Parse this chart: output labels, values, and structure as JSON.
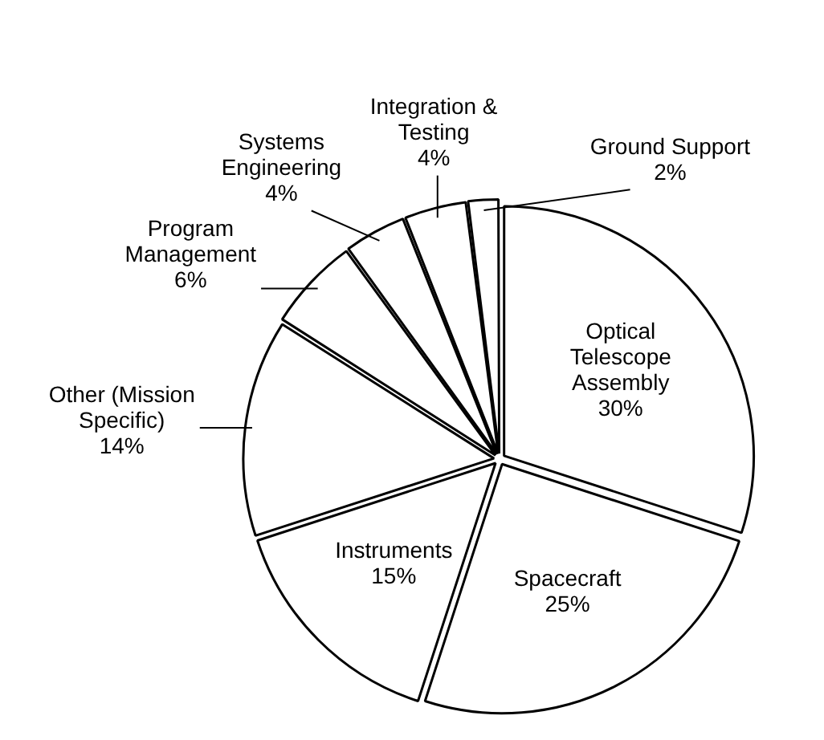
{
  "chart_data": {
    "type": "pie",
    "categories": [
      "Optical Telescope Assembly",
      "Spacecraft",
      "Instruments",
      "Other (Mission Specific)",
      "Program Management",
      "Systems Engineering",
      "Integration & Testing",
      "Ground Support"
    ],
    "values": [
      30,
      25,
      15,
      14,
      6,
      4,
      4,
      2
    ],
    "value_labels": [
      "30%",
      "25%",
      "15%",
      "14%",
      "6%",
      "4%",
      "4%",
      "2%"
    ],
    "colors": [
      "#ffffff",
      "#ffffff",
      "#ffffff",
      "#ffffff",
      "#ffffff",
      "#ffffff",
      "#ffffff",
      "#ffffff"
    ],
    "legend": false
  }
}
